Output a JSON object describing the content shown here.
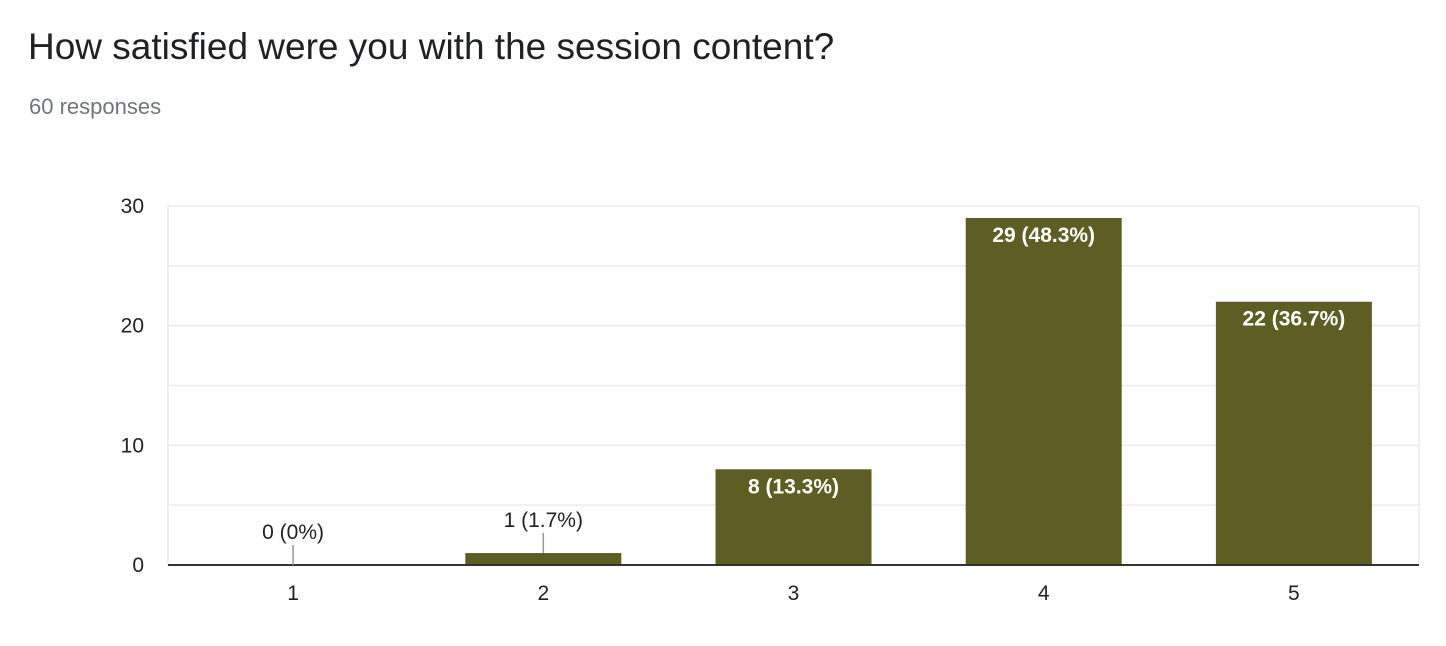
{
  "question": {
    "title": "How satisfied were you with the session content?",
    "responses": "60 responses"
  },
  "colors": {
    "bar": "#5e5e24",
    "grid": "#ebebeb",
    "baseline": "#333333",
    "label_inside": "#ffffff",
    "label_outside": "#222222",
    "leader": "#999999"
  },
  "chart_data": {
    "type": "bar",
    "title": "",
    "xlabel": "",
    "ylabel": "",
    "categories": [
      "1",
      "2",
      "3",
      "4",
      "5"
    ],
    "values": [
      0,
      1,
      8,
      29,
      22
    ],
    "data_labels": [
      "0 (0%)",
      "1 (1.7%)",
      "8 (13.3%)",
      "29 (48.3%)",
      "22 (36.7%)"
    ],
    "ylim": [
      0,
      30
    ],
    "yticks": [
      0,
      10,
      20,
      30
    ],
    "grid": true,
    "legend": "none"
  }
}
